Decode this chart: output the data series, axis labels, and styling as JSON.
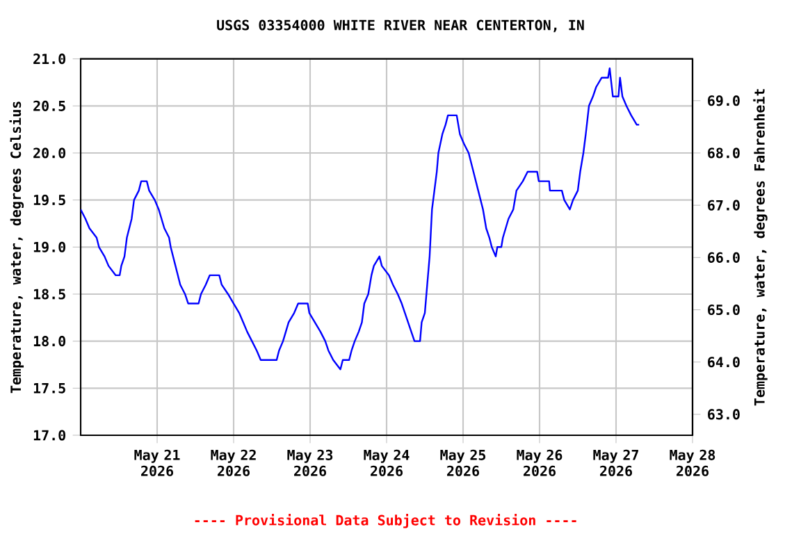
{
  "chart_data": {
    "type": "line",
    "title": "USGS 03354000 WHITE RIVER NEAR CENTERTON, IN",
    "ylabel": "Temperature, water, degrees Celsius",
    "y2label": "Temperature, water, degrees Fahrenheit",
    "annotations": [
      "---- Provisional Data Subject to Revision ----"
    ],
    "xlim": [
      "2026-05-20T00:00",
      "2026-05-28T00:00"
    ],
    "xticks": [
      {
        "value": "2026-05-21",
        "label": "May 21 2026"
      },
      {
        "value": "2026-05-22",
        "label": "May 22 2026"
      },
      {
        "value": "2026-05-23",
        "label": "May 23 2026"
      },
      {
        "value": "2026-05-24",
        "label": "May 24 2026"
      },
      {
        "value": "2026-05-25",
        "label": "May 25 2026"
      },
      {
        "value": "2026-05-26",
        "label": "May 26 2026"
      },
      {
        "value": "2026-05-27",
        "label": "May 27 2026"
      },
      {
        "value": "2026-05-28",
        "label": "May 28 2026"
      }
    ],
    "ylim": [
      17.0,
      21.0
    ],
    "yticks": [
      {
        "value": 17.0,
        "label": "17.0"
      },
      {
        "value": 17.5,
        "label": "17.5"
      },
      {
        "value": 18.0,
        "label": "18.0"
      },
      {
        "value": 18.5,
        "label": "18.5"
      },
      {
        "value": 19.0,
        "label": "19.0"
      },
      {
        "value": 19.5,
        "label": "19.5"
      },
      {
        "value": 20.0,
        "label": "20.0"
      },
      {
        "value": 20.5,
        "label": "20.5"
      },
      {
        "value": 21.0,
        "label": "21.0"
      }
    ],
    "y2lim": [
      62.6,
      69.8
    ],
    "y2ticks": [
      {
        "value": 63,
        "label": "63.0"
      },
      {
        "value": 64,
        "label": "64.0"
      },
      {
        "value": 65,
        "label": "65.0"
      },
      {
        "value": 66,
        "label": "66.0"
      },
      {
        "value": 67,
        "label": "67.0"
      },
      {
        "value": 68,
        "label": "68.0"
      },
      {
        "value": 69,
        "label": "69.0"
      }
    ],
    "grid": true,
    "color": "#0000ff",
    "x": [
      "2026-05-20T00:00",
      "2026-05-20T01:30",
      "2026-05-20T02:45",
      "2026-05-20T05:00",
      "2026-05-20T05:45",
      "2026-05-20T07:30",
      "2026-05-20T08:45",
      "2026-05-20T11:00",
      "2026-05-20T12:15",
      "2026-05-20T12:45",
      "2026-05-20T13:45",
      "2026-05-20T14:30",
      "2026-05-20T16:00",
      "2026-05-20T16:45",
      "2026-05-20T18:15",
      "2026-05-20T19:00",
      "2026-05-20T20:45",
      "2026-05-20T21:30",
      "2026-05-20T23:15",
      "2026-05-21T00:30",
      "2026-05-21T02:15",
      "2026-05-21T03:45",
      "2026-05-21T04:15",
      "2026-05-21T05:45",
      "2026-05-21T07:15",
      "2026-05-21T08:45",
      "2026-05-21T09:45",
      "2026-05-21T13:00",
      "2026-05-21T13:45",
      "2026-05-21T15:15",
      "2026-05-21T16:30",
      "2026-05-21T19:30",
      "2026-05-21T20:15",
      "2026-05-21T22:15",
      "2026-05-22T00:00",
      "2026-05-22T01:45",
      "2026-05-22T03:00",
      "2026-05-22T04:15",
      "2026-05-22T05:45",
      "2026-05-22T07:15",
      "2026-05-22T08:30",
      "2026-05-22T13:30",
      "2026-05-22T14:15",
      "2026-05-22T15:30",
      "2026-05-22T17:15",
      "2026-05-22T19:00",
      "2026-05-22T20:15",
      "2026-05-22T23:15",
      "2026-05-22T23:45",
      "2026-05-23T01:30",
      "2026-05-23T03:15",
      "2026-05-23T04:45",
      "2026-05-23T05:45",
      "2026-05-23T07:15",
      "2026-05-23T09:30",
      "2026-05-23T10:15",
      "2026-05-23T12:15",
      "2026-05-23T13:00",
      "2026-05-23T14:00",
      "2026-05-23T15:15",
      "2026-05-23T16:15",
      "2026-05-23T17:00",
      "2026-05-23T18:15",
      "2026-05-23T19:15",
      "2026-05-23T20:00",
      "2026-05-23T21:45",
      "2026-05-23T22:30",
      "2026-05-24T00:45",
      "2026-05-24T02:00",
      "2026-05-24T03:30",
      "2026-05-24T04:45",
      "2026-05-24T05:45",
      "2026-05-24T06:45",
      "2026-05-24T07:45",
      "2026-05-24T08:45",
      "2026-05-24T10:30",
      "2026-05-24T11:00",
      "2026-05-24T12:00",
      "2026-05-24T12:45",
      "2026-05-24T13:30",
      "2026-05-24T14:15",
      "2026-05-24T15:00",
      "2026-05-24T15:45",
      "2026-05-24T16:15",
      "2026-05-24T17:30",
      "2026-05-24T18:30",
      "2026-05-24T19:15",
      "2026-05-24T22:00",
      "2026-05-24T23:00",
      "2026-05-25T00:15",
      "2026-05-25T01:45",
      "2026-05-25T03:15",
      "2026-05-25T04:45",
      "2026-05-25T06:15",
      "2026-05-25T07:15",
      "2026-05-25T08:15",
      "2026-05-25T09:00",
      "2026-05-25T10:15",
      "2026-05-25T10:45",
      "2026-05-25T12:00",
      "2026-05-25T12:30",
      "2026-05-25T14:15",
      "2026-05-25T15:45",
      "2026-05-25T16:45",
      "2026-05-25T18:45",
      "2026-05-25T20:15",
      "2026-05-25T23:15",
      "2026-05-25T23:45",
      "2026-05-26T03:00",
      "2026-05-26T03:15",
      "2026-05-26T07:00",
      "2026-05-26T07:45",
      "2026-05-26T09:30",
      "2026-05-26T10:30",
      "2026-05-26T12:00",
      "2026-05-26T12:45",
      "2026-05-26T13:45",
      "2026-05-26T14:30",
      "2026-05-26T15:30",
      "2026-05-26T16:45",
      "2026-05-26T17:45",
      "2026-05-26T19:30",
      "2026-05-26T21:30",
      "2026-05-26T22:00",
      "2026-05-26T23:00",
      "2026-05-27T00:45",
      "2026-05-27T01:15",
      "2026-05-27T02:00",
      "2026-05-27T03:15",
      "2026-05-27T04:45",
      "2026-05-27T06:30",
      "2026-05-27T07:15"
    ],
    "values": [
      19.4,
      19.3,
      19.2,
      19.1,
      19.0,
      18.9,
      18.8,
      18.7,
      18.7,
      18.8,
      18.9,
      19.1,
      19.3,
      19.5,
      19.6,
      19.7,
      19.7,
      19.6,
      19.5,
      19.4,
      19.2,
      19.1,
      19.0,
      18.8,
      18.6,
      18.5,
      18.4,
      18.4,
      18.5,
      18.6,
      18.7,
      18.7,
      18.6,
      18.5,
      18.4,
      18.3,
      18.2,
      18.1,
      18.0,
      17.9,
      17.8,
      17.8,
      17.9,
      18.0,
      18.2,
      18.3,
      18.4,
      18.4,
      18.3,
      18.2,
      18.1,
      18.0,
      17.9,
      17.8,
      17.7,
      17.8,
      17.8,
      17.9,
      18.0,
      18.1,
      18.2,
      18.4,
      18.5,
      18.7,
      18.8,
      18.9,
      18.8,
      18.7,
      18.6,
      18.5,
      18.4,
      18.3,
      18.2,
      18.1,
      18.0,
      18.0,
      18.2,
      18.3,
      18.6,
      18.9,
      19.4,
      19.6,
      19.8,
      20.0,
      20.2,
      20.3,
      20.4,
      20.4,
      20.2,
      20.1,
      20.0,
      19.8,
      19.6,
      19.4,
      19.2,
      19.1,
      19.0,
      18.9,
      19.0,
      19.0,
      19.1,
      19.3,
      19.4,
      19.6,
      19.7,
      19.8,
      19.8,
      19.7,
      19.7,
      19.6,
      19.6,
      19.5,
      19.4,
      19.5,
      19.6,
      19.8,
      20.0,
      20.2,
      20.5,
      20.6,
      20.7,
      20.8,
      20.8,
      20.9,
      20.6,
      20.6,
      20.8,
      20.6,
      20.5,
      20.4,
      20.3,
      20.3
    ]
  }
}
